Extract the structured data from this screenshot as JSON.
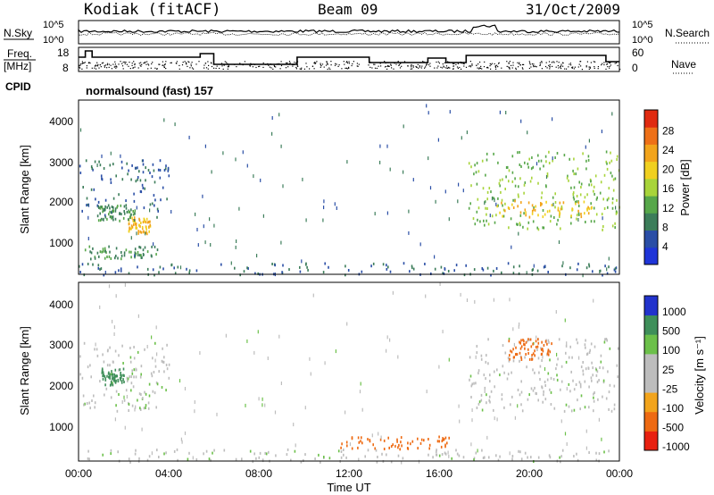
{
  "header": {
    "site": "Kodiak (fitACF)",
    "beam": "Beam 09",
    "date": "31/Oct/2009"
  },
  "status_panel": {
    "nsky_label": "N.Sky",
    "nsearch_label": "N.Search",
    "freq_label_1": "Freq.",
    "freq_label_2": "[MHz]",
    "nave_label": "Nave",
    "cpid_label": "CPID",
    "cpid_text": "normalsound (fast) 157",
    "noise_ticks_left": [
      "10^5",
      "10^0"
    ],
    "noise_ticks_right": [
      "10^5",
      "10^0"
    ],
    "freq_ticks": [
      "18",
      "8"
    ],
    "nave_ticks": [
      "60",
      "0"
    ]
  },
  "colors": {
    "power": [
      "#1f35d8",
      "#2a4ea6",
      "#3c7d5a",
      "#57a74a",
      "#a8d43a",
      "#f0d020",
      "#f2a41c",
      "#ee7018",
      "#e02a10"
    ],
    "velocity": [
      "#2233cc",
      "#3f8f5a",
      "#6cc04a",
      "#bdbdbd",
      "#bdbdbd",
      "#f2a41c",
      "#ee6a12",
      "#e82010"
    ]
  },
  "chart_data": [
    {
      "type": "heatmap",
      "ylabel": "Slant Range [km]",
      "xlabel": "",
      "yticks": [
        "1000",
        "2000",
        "3000",
        "4000"
      ],
      "ylim": [
        300,
        4500
      ],
      "colorbar_label": "Power [dB]",
      "colorbar_ticks": [
        "4",
        "8",
        "12",
        "16",
        "20",
        "24",
        "28"
      ],
      "regions": [
        {
          "t0": 0.0,
          "t1": 4.0,
          "r0": 1700,
          "r1": 3100,
          "v": 8
        },
        {
          "t0": 2.2,
          "t1": 3.2,
          "r0": 1300,
          "r1": 1700,
          "v": 22
        },
        {
          "t0": 0.8,
          "t1": 2.5,
          "r0": 1600,
          "r1": 2000,
          "v": 12
        },
        {
          "t0": 0.2,
          "t1": 3.5,
          "r0": 700,
          "r1": 1000,
          "v": 10
        },
        {
          "t0": 0.0,
          "t1": 24.0,
          "r0": 300,
          "r1": 600,
          "v": 8
        },
        {
          "t0": 17.3,
          "t1": 24.0,
          "r0": 1400,
          "r1": 3300,
          "v": 14
        },
        {
          "t0": 18.5,
          "t1": 22.8,
          "r0": 1700,
          "r1": 2100,
          "v": 22
        }
      ]
    },
    {
      "type": "heatmap",
      "ylabel": "Slant Range [km]",
      "xlabel": "Time UT",
      "xticks": [
        "00:00",
        "04:00",
        "08:00",
        "12:00",
        "16:00",
        "20:00",
        "00:00"
      ],
      "yticks": [
        "1000",
        "2000",
        "3000",
        "4000"
      ],
      "ylim": [
        300,
        4500
      ],
      "colorbar_label": "Velocity [m s⁻¹]",
      "colorbar_ticks": [
        "1000",
        "500",
        "100",
        "25",
        "-25",
        "-100",
        "-500",
        "-1000"
      ],
      "regions": [
        {
          "t0": 0.0,
          "t1": 4.0,
          "r0": 1500,
          "r1": 3100,
          "v": 0
        },
        {
          "t0": 1.0,
          "t1": 2.0,
          "r0": 2100,
          "r1": 2500,
          "v": 300
        },
        {
          "t0": 17.3,
          "t1": 24.0,
          "r0": 1500,
          "r1": 3200,
          "v": 0
        },
        {
          "t0": 19.0,
          "t1": 21.0,
          "r0": 2700,
          "r1": 3200,
          "v": -300
        },
        {
          "t0": 11.5,
          "t1": 16.5,
          "r0": 600,
          "r1": 900,
          "v": -150
        },
        {
          "t0": 0.0,
          "t1": 24.0,
          "r0": 300,
          "r1": 600,
          "v": 0
        }
      ]
    }
  ]
}
